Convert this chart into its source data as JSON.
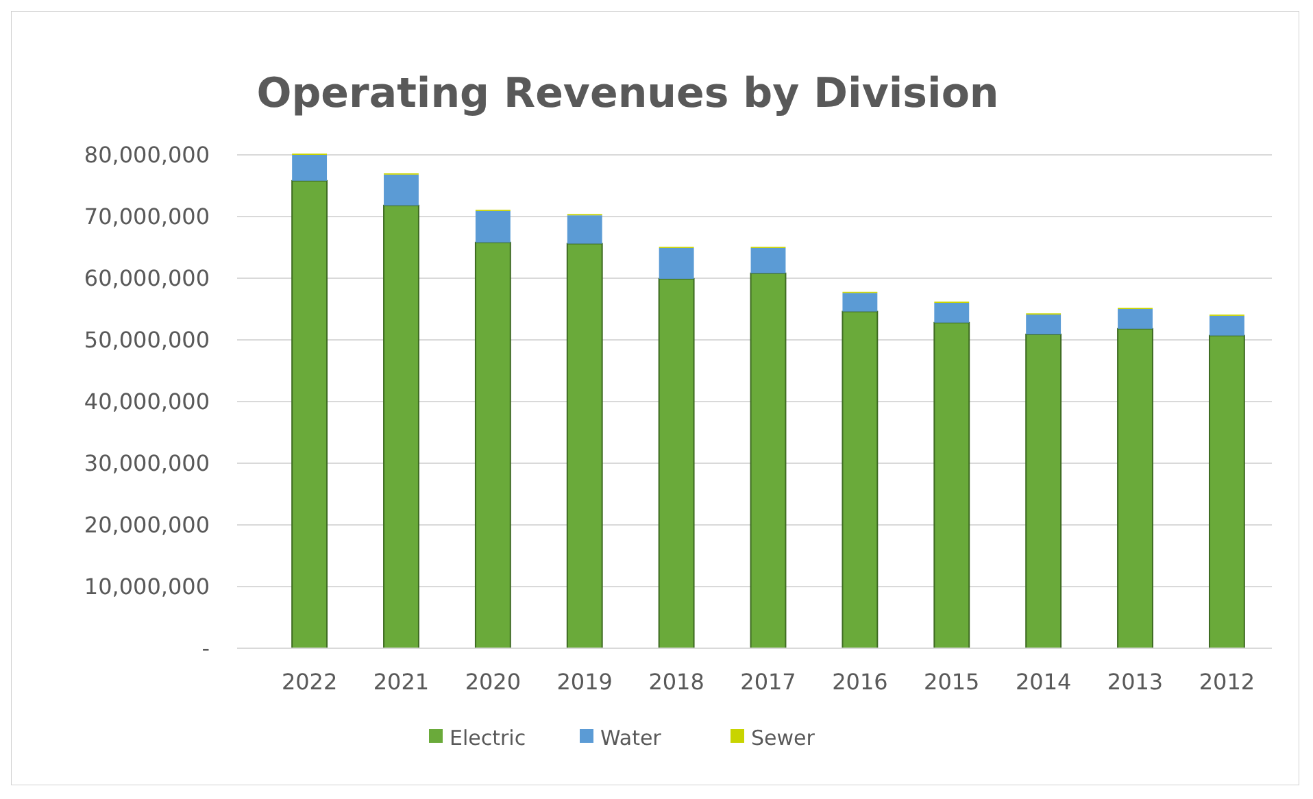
{
  "chart_data": {
    "type": "bar",
    "title": "Operating Revenues by Division",
    "stacked": true,
    "categories": [
      "2022",
      "2021",
      "2020",
      "2019",
      "2018",
      "2017",
      "2016",
      "2015",
      "2014",
      "2013",
      "2012"
    ],
    "series": [
      {
        "name": "Electric",
        "color": "#6aaa3a",
        "values": [
          75800000,
          71800000,
          65800000,
          65600000,
          59900000,
          60800000,
          54600000,
          52800000,
          50900000,
          51800000,
          50700000
        ]
      },
      {
        "name": "Water",
        "color": "#5b9bd5",
        "values": [
          4200000,
          5000000,
          5100000,
          4600000,
          5000000,
          4100000,
          3000000,
          3200000,
          3200000,
          3200000,
          3200000
        ]
      },
      {
        "name": "Sewer",
        "color": "#c8d400",
        "values": [
          200000,
          200000,
          200000,
          200000,
          200000,
          200000,
          200000,
          200000,
          200000,
          200000,
          200000
        ]
      }
    ],
    "ylim": [
      0,
      80000000
    ],
    "yticks": [
      {
        "value": 0,
        "label": "-"
      },
      {
        "value": 10000000,
        "label": "10,000,000"
      },
      {
        "value": 20000000,
        "label": "20,000,000"
      },
      {
        "value": 30000000,
        "label": "30,000,000"
      },
      {
        "value": 40000000,
        "label": "40,000,000"
      },
      {
        "value": 50000000,
        "label": "50,000,000"
      },
      {
        "value": 60000000,
        "label": "60,000,000"
      },
      {
        "value": 70000000,
        "label": "70,000,000"
      },
      {
        "value": 80000000,
        "label": "80,000,000"
      }
    ],
    "grid": "y",
    "legend": "bottom"
  }
}
